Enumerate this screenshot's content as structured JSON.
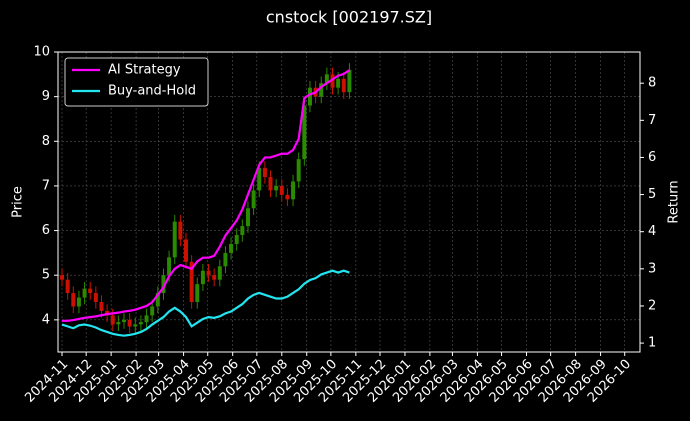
{
  "chart_data": {
    "type": "candlestick",
    "title": "cnstock [002197.SZ]",
    "ylabel": "Price",
    "y2label": "Return",
    "x": [
      "2024-11-01",
      "2024-11-08",
      "2024-11-15",
      "2024-11-22",
      "2024-11-29",
      "2024-12-06",
      "2024-12-13",
      "2024-12-20",
      "2024-12-27",
      "2025-01-03",
      "2025-01-10",
      "2025-01-17",
      "2025-01-24",
      "2025-01-31",
      "2025-02-07",
      "2025-02-14",
      "2025-02-21",
      "2025-02-28",
      "2025-03-07",
      "2025-03-14",
      "2025-03-21",
      "2025-03-28",
      "2025-04-04",
      "2025-04-11",
      "2025-04-18",
      "2025-04-25",
      "2025-05-02",
      "2025-05-09",
      "2025-05-16",
      "2025-05-23",
      "2025-05-30",
      "2025-06-06",
      "2025-06-13",
      "2025-06-20",
      "2025-06-27",
      "2025-07-04",
      "2025-07-11",
      "2025-07-18",
      "2025-07-25",
      "2025-08-01",
      "2025-08-08",
      "2025-08-15",
      "2025-08-22",
      "2025-08-29",
      "2025-09-05",
      "2025-09-12",
      "2025-09-19",
      "2025-09-26",
      "2025-10-03",
      "2025-10-10",
      "2025-10-17",
      "2025-10-24"
    ],
    "open": [
      5.0,
      4.9,
      4.6,
      4.3,
      4.5,
      4.7,
      4.6,
      4.4,
      4.2,
      4.1,
      3.9,
      3.95,
      4.0,
      3.85,
      3.9,
      3.95,
      4.1,
      4.3,
      4.6,
      5.0,
      5.4,
      6.2,
      5.8,
      5.3,
      4.4,
      4.8,
      5.1,
      5.0,
      4.9,
      5.2,
      5.5,
      5.7,
      5.9,
      6.1,
      6.5,
      6.9,
      7.4,
      7.2,
      6.9,
      7.0,
      6.8,
      6.7,
      7.1,
      7.6,
      8.8,
      9.2,
      9.0,
      9.3,
      9.5,
      9.2,
      9.4,
      9.1
    ],
    "high": [
      5.15,
      5.05,
      4.75,
      4.65,
      4.85,
      4.85,
      4.75,
      4.55,
      4.35,
      4.25,
      4.1,
      4.15,
      4.15,
      4.05,
      4.1,
      4.25,
      4.45,
      4.75,
      5.15,
      5.55,
      6.35,
      6.35,
      5.95,
      5.45,
      4.95,
      5.25,
      5.25,
      5.15,
      5.35,
      5.65,
      5.85,
      6.05,
      6.25,
      6.65,
      7.05,
      7.55,
      7.55,
      7.35,
      7.15,
      7.15,
      6.95,
      7.25,
      7.75,
      8.95,
      9.35,
      9.35,
      9.45,
      9.65,
      9.65,
      9.55,
      9.55,
      9.75
    ],
    "low": [
      4.75,
      4.45,
      4.15,
      4.15,
      4.35,
      4.45,
      4.25,
      4.05,
      3.95,
      3.75,
      3.75,
      3.8,
      3.7,
      3.7,
      3.75,
      3.8,
      3.95,
      4.15,
      4.45,
      4.85,
      5.25,
      5.65,
      5.15,
      4.25,
      4.25,
      4.65,
      4.85,
      4.75,
      4.75,
      5.05,
      5.35,
      5.55,
      5.75,
      5.95,
      6.35,
      6.75,
      7.05,
      6.75,
      6.75,
      6.65,
      6.55,
      6.55,
      6.95,
      7.45,
      8.65,
      8.85,
      8.85,
      9.15,
      9.05,
      9.05,
      8.95,
      8.95
    ],
    "close": [
      4.9,
      4.6,
      4.3,
      4.5,
      4.7,
      4.6,
      4.4,
      4.2,
      4.1,
      3.9,
      3.95,
      4.0,
      3.85,
      3.9,
      3.95,
      4.1,
      4.3,
      4.6,
      5.0,
      5.4,
      6.2,
      5.8,
      5.3,
      4.4,
      4.8,
      5.1,
      5.0,
      4.9,
      5.2,
      5.5,
      5.7,
      5.9,
      6.1,
      6.5,
      6.9,
      7.4,
      7.2,
      6.9,
      7.0,
      6.8,
      6.7,
      7.1,
      7.6,
      8.8,
      9.2,
      9.0,
      9.3,
      9.5,
      9.2,
      9.4,
      9.1,
      9.6
    ],
    "up_color": "#2a8a00",
    "down_color": "#cc1100",
    "series": [
      {
        "name": "AI Strategy",
        "color": "#ff00ff",
        "axis": "y2",
        "values": [
          1.6,
          1.6,
          1.62,
          1.65,
          1.68,
          1.7,
          1.72,
          1.75,
          1.78,
          1.8,
          1.82,
          1.85,
          1.87,
          1.9,
          1.95,
          2.0,
          2.1,
          2.3,
          2.5,
          2.8,
          3.0,
          3.1,
          3.05,
          3.0,
          3.2,
          3.3,
          3.3,
          3.35,
          3.6,
          3.9,
          4.1,
          4.3,
          4.6,
          5.0,
          5.4,
          5.8,
          6.0,
          6.0,
          6.05,
          6.1,
          6.1,
          6.2,
          6.5,
          7.6,
          7.7,
          7.75,
          7.9,
          8.0,
          8.1,
          8.2,
          8.25,
          8.35
        ]
      },
      {
        "name": "Buy-and-Hold",
        "color": "#22e5f0",
        "axis": "y2",
        "values": [
          1.5,
          1.45,
          1.4,
          1.48,
          1.5,
          1.47,
          1.42,
          1.35,
          1.3,
          1.25,
          1.22,
          1.2,
          1.22,
          1.25,
          1.3,
          1.38,
          1.5,
          1.6,
          1.7,
          1.85,
          1.95,
          1.85,
          1.7,
          1.45,
          1.55,
          1.65,
          1.7,
          1.68,
          1.72,
          1.8,
          1.85,
          1.95,
          2.05,
          2.2,
          2.3,
          2.35,
          2.3,
          2.25,
          2.2,
          2.2,
          2.25,
          2.35,
          2.45,
          2.6,
          2.7,
          2.75,
          2.85,
          2.9,
          2.95,
          2.9,
          2.95,
          2.9
        ]
      }
    ],
    "xlim": [
      "2024-10-27",
      "2026-10-20"
    ],
    "xticks": [
      "2024-11",
      "2024-12",
      "2025-01",
      "2025-02",
      "2025-03",
      "2025-04",
      "2025-05",
      "2025-06",
      "2025-07",
      "2025-08",
      "2025-09",
      "2025-10",
      "2025-11",
      "2025-12",
      "2026-01",
      "2026-02",
      "2026-03",
      "2026-04",
      "2026-05",
      "2026-06",
      "2026-07",
      "2026-08",
      "2026-09",
      "2026-10"
    ],
    "ylim": [
      3.28,
      10
    ],
    "yticks": [
      4,
      5,
      6,
      7,
      8,
      9,
      10
    ],
    "y2lim": [
      0.76,
      8.84
    ],
    "y2ticks": [
      1,
      2,
      3,
      4,
      5,
      6,
      7,
      8
    ],
    "grid": true,
    "legend": "upper left"
  }
}
